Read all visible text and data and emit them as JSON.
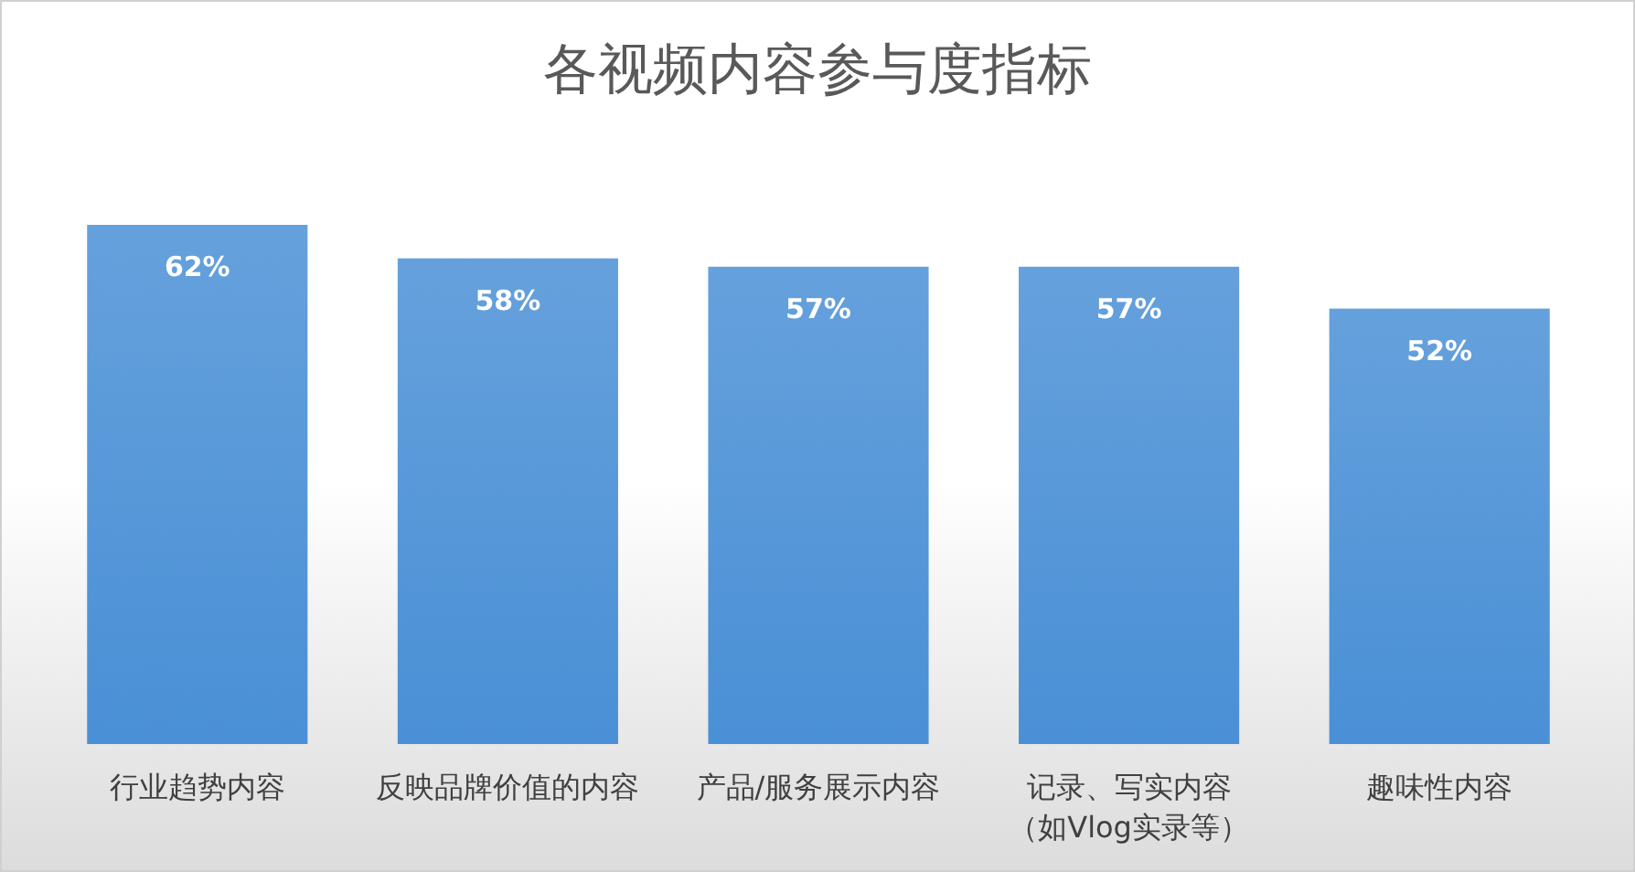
{
  "chart_data": {
    "type": "bar",
    "title": "各视频内容参与度指标",
    "categories": [
      "行业趋势内容",
      "反映品牌价值的内容",
      "产品/服务展示内容",
      "记录、写实内容（如Vlog实录等）",
      "趣味性内容"
    ],
    "values": [
      62,
      58,
      57,
      57,
      52
    ],
    "value_labels": [
      "62%",
      "58%",
      "57%",
      "57%",
      "52%"
    ],
    "color": "#4a90d6",
    "tick_labels": "x"
  }
}
